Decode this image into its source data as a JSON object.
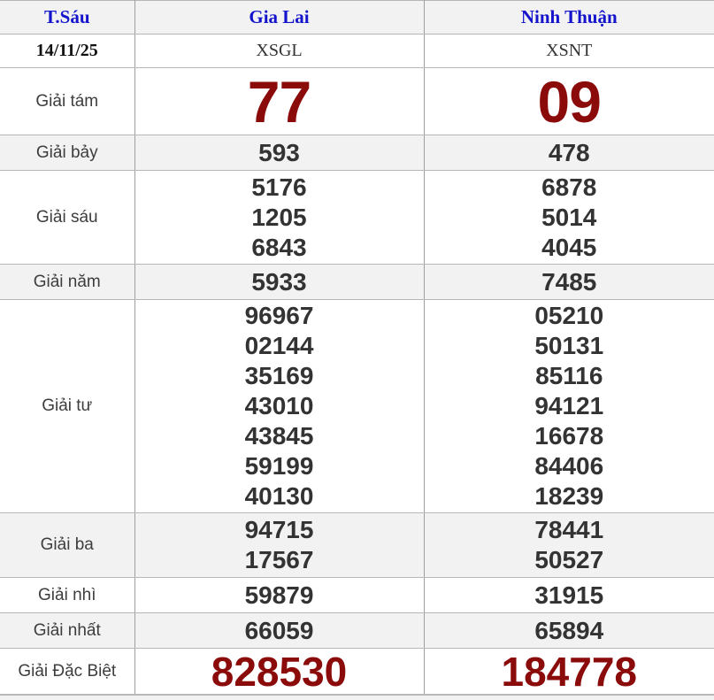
{
  "table": {
    "columns": {
      "day": "T.Sáu",
      "station1": "Gia Lai",
      "station2": "Ninh Thuận"
    },
    "date_row": {
      "date": "14/11/25",
      "code1": "XSGL",
      "code2": "XSNT"
    },
    "prize_rows": [
      {
        "key": "giai-tam",
        "label": "Giải tám",
        "shaded": false,
        "size": "xl",
        "color": "red",
        "station1": [
          "77"
        ],
        "station2": [
          "09"
        ]
      },
      {
        "key": "giai-bay",
        "label": "Giải bảy",
        "shaded": true,
        "station1": [
          "593"
        ],
        "station2": [
          "478"
        ]
      },
      {
        "key": "giai-sau",
        "label": "Giải sáu",
        "shaded": false,
        "station1": [
          "5176",
          "1205",
          "6843"
        ],
        "station2": [
          "6878",
          "5014",
          "4045"
        ]
      },
      {
        "key": "giai-nam",
        "label": "Giải năm",
        "shaded": true,
        "station1": [
          "5933"
        ],
        "station2": [
          "7485"
        ]
      },
      {
        "key": "giai-tu",
        "label": "Giải tư",
        "shaded": false,
        "station1": [
          "96967",
          "02144",
          "35169",
          "43010",
          "43845",
          "59199",
          "40130"
        ],
        "station2": [
          "05210",
          "50131",
          "85116",
          "94121",
          "16678",
          "84406",
          "18239"
        ]
      },
      {
        "key": "giai-ba",
        "label": "Giải ba",
        "shaded": true,
        "station1": [
          "94715",
          "17567"
        ],
        "station2": [
          "78441",
          "50527"
        ]
      },
      {
        "key": "giai-nhi",
        "label": "Giải nhì",
        "shaded": false,
        "station1": [
          "59879"
        ],
        "station2": [
          "31915"
        ]
      },
      {
        "key": "giai-nhat",
        "label": "Giải nhất",
        "shaded": true,
        "station1": [
          "66059"
        ],
        "station2": [
          "65894"
        ]
      },
      {
        "key": "giai-dac-biet",
        "label": "Giải Đặc Biệt",
        "shaded": false,
        "size": "lg",
        "color": "red",
        "station1": [
          "828530"
        ],
        "station2": [
          "184778"
        ]
      }
    ],
    "colors": {
      "header_blue": "#1414cc",
      "prize_red": "#8b0b0b",
      "number_dark": "#333333",
      "shaded_bg": "#f2f2f2",
      "border_h": "#b7b7b7",
      "border_v": "#9e9e9e"
    }
  }
}
